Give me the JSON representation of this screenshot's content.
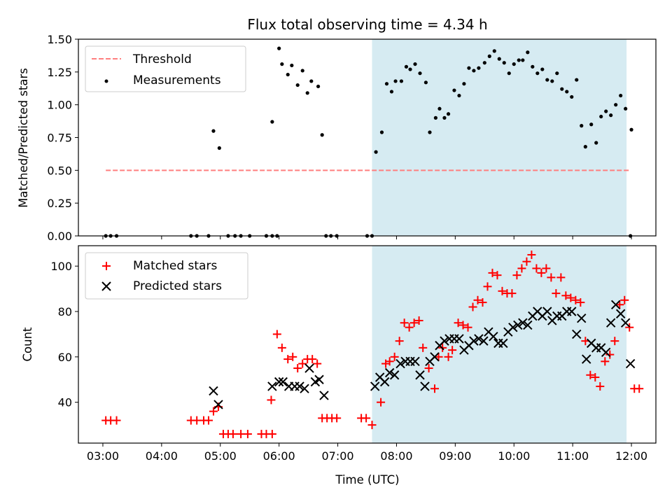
{
  "chart_data": [
    {
      "type": "scatter",
      "panel": "top",
      "title": "Flux total observing time = 4.34 h",
      "xlabel": "",
      "ylabel": "Matched/Predicted stars",
      "xlim": [
        "02:35",
        "12:25"
      ],
      "ylim": [
        0,
        1.5
      ],
      "yticks": [
        "0.00",
        "0.25",
        "0.50",
        "0.75",
        "1.00",
        "1.25",
        "1.50"
      ],
      "grid": false,
      "legend_position": "top-left",
      "shaded_interval": {
        "start": "07:35",
        "end": "11:55",
        "color": "#add8e6"
      },
      "threshold": {
        "name": "Threshold",
        "value": 0.5,
        "x_start": "03:03",
        "x_end": "11:58",
        "style": "dashed",
        "color": "#ff7f7f"
      },
      "series": [
        {
          "name": "Measurements",
          "color": "#000000",
          "marker": "dot",
          "points": [
            [
              "03:03",
              0
            ],
            [
              "03:08",
              0
            ],
            [
              "03:14",
              0
            ],
            [
              "04:30",
              0
            ],
            [
              "04:36",
              0
            ],
            [
              "04:48",
              0
            ],
            [
              "04:53",
              0.8
            ],
            [
              "04:59",
              0.67
            ],
            [
              "05:08",
              0
            ],
            [
              "05:15",
              0
            ],
            [
              "05:21",
              0
            ],
            [
              "05:30",
              0
            ],
            [
              "05:47",
              0
            ],
            [
              "05:53",
              0
            ],
            [
              "05:58",
              0
            ],
            [
              "05:53",
              0.87
            ],
            [
              "06:00",
              1.43
            ],
            [
              "06:03",
              1.31
            ],
            [
              "06:09",
              1.23
            ],
            [
              "06:13",
              1.3
            ],
            [
              "06:19",
              1.15
            ],
            [
              "06:24",
              1.26
            ],
            [
              "06:29",
              1.09
            ],
            [
              "06:33",
              1.18
            ],
            [
              "06:40",
              1.14
            ],
            [
              "06:44",
              0.77
            ],
            [
              "06:48",
              0
            ],
            [
              "06:53",
              0
            ],
            [
              "06:59",
              0
            ],
            [
              "07:30",
              0
            ],
            [
              "07:35",
              0
            ],
            [
              "07:39",
              0.64
            ],
            [
              "07:45",
              0.79
            ],
            [
              "07:50",
              1.16
            ],
            [
              "07:55",
              1.1
            ],
            [
              "07:59",
              1.18
            ],
            [
              "08:05",
              1.18
            ],
            [
              "08:10",
              1.29
            ],
            [
              "08:14",
              1.27
            ],
            [
              "08:19",
              1.31
            ],
            [
              "08:24",
              1.24
            ],
            [
              "08:30",
              1.17
            ],
            [
              "08:34",
              0.79
            ],
            [
              "08:40",
              0.9
            ],
            [
              "08:44",
              0.97
            ],
            [
              "08:49",
              0.9
            ],
            [
              "08:53",
              0.93
            ],
            [
              "08:59",
              1.11
            ],
            [
              "09:04",
              1.07
            ],
            [
              "09:09",
              1.16
            ],
            [
              "09:14",
              1.28
            ],
            [
              "09:19",
              1.26
            ],
            [
              "09:24",
              1.28
            ],
            [
              "09:30",
              1.32
            ],
            [
              "09:35",
              1.37
            ],
            [
              "09:40",
              1.41
            ],
            [
              "09:45",
              1.35
            ],
            [
              "09:50",
              1.32
            ],
            [
              "09:55",
              1.24
            ],
            [
              "10:00",
              1.31
            ],
            [
              "10:05",
              1.34
            ],
            [
              "10:09",
              1.34
            ],
            [
              "10:14",
              1.4
            ],
            [
              "10:19",
              1.29
            ],
            [
              "10:24",
              1.24
            ],
            [
              "10:29",
              1.27
            ],
            [
              "10:34",
              1.19
            ],
            [
              "10:39",
              1.18
            ],
            [
              "10:44",
              1.24
            ],
            [
              "10:49",
              1.12
            ],
            [
              "10:54",
              1.1
            ],
            [
              "10:59",
              1.06
            ],
            [
              "11:04",
              1.19
            ],
            [
              "11:09",
              0.84
            ],
            [
              "11:13",
              0.68
            ],
            [
              "11:19",
              0.85
            ],
            [
              "11:24",
              0.71
            ],
            [
              "11:29",
              0.91
            ],
            [
              "11:34",
              0.95
            ],
            [
              "11:39",
              0.92
            ],
            [
              "11:44",
              1.0
            ],
            [
              "11:49",
              1.07
            ],
            [
              "11:54",
              0.97
            ],
            [
              "12:00",
              0.81
            ],
            [
              "11:59",
              0
            ]
          ]
        }
      ]
    },
    {
      "type": "scatter",
      "panel": "bottom",
      "title": "",
      "xlabel": "Time (UTC)",
      "ylabel": "Count",
      "xlim": [
        "02:35",
        "12:25"
      ],
      "ylim": [
        22,
        109
      ],
      "xticks": [
        "03:00",
        "04:00",
        "05:00",
        "06:00",
        "07:00",
        "08:00",
        "09:00",
        "10:00",
        "11:00",
        "12:00"
      ],
      "yticks": [
        "40",
        "60",
        "80",
        "100"
      ],
      "grid": false,
      "legend_position": "top-left",
      "shaded_interval": {
        "start": "07:35",
        "end": "11:55",
        "color": "#add8e6"
      },
      "series": [
        {
          "name": "Matched stars",
          "color": "#ff0000",
          "marker": "plus",
          "points": [
            [
              "03:03",
              32
            ],
            [
              "03:08",
              32
            ],
            [
              "03:14",
              32
            ],
            [
              "04:30",
              32
            ],
            [
              "04:36",
              32
            ],
            [
              "04:43",
              32
            ],
            [
              "04:48",
              32
            ],
            [
              "04:53",
              36
            ],
            [
              "04:58",
              38
            ],
            [
              "05:03",
              26
            ],
            [
              "05:08",
              26
            ],
            [
              "05:13",
              26
            ],
            [
              "05:21",
              26
            ],
            [
              "05:28",
              26
            ],
            [
              "05:42",
              26
            ],
            [
              "05:47",
              26
            ],
            [
              "05:53",
              26
            ],
            [
              "05:52",
              41
            ],
            [
              "05:58",
              70
            ],
            [
              "06:03",
              64
            ],
            [
              "06:09",
              59
            ],
            [
              "06:14",
              60
            ],
            [
              "06:19",
              55
            ],
            [
              "06:24",
              57
            ],
            [
              "06:29",
              59
            ],
            [
              "06:34",
              59
            ],
            [
              "06:39",
              57
            ],
            [
              "06:44",
              33
            ],
            [
              "06:49",
              33
            ],
            [
              "06:54",
              33
            ],
            [
              "06:59",
              33
            ],
            [
              "07:24",
              33
            ],
            [
              "07:29",
              33
            ],
            [
              "07:35",
              30
            ],
            [
              "07:44",
              40
            ],
            [
              "07:49",
              57
            ],
            [
              "07:53",
              58
            ],
            [
              "07:58",
              60
            ],
            [
              "08:03",
              67
            ],
            [
              "08:08",
              75
            ],
            [
              "08:13",
              73
            ],
            [
              "08:18",
              75
            ],
            [
              "08:23",
              76
            ],
            [
              "08:27",
              64
            ],
            [
              "08:33",
              55
            ],
            [
              "08:39",
              46
            ],
            [
              "08:43",
              60
            ],
            [
              "08:47",
              64
            ],
            [
              "08:53",
              60
            ],
            [
              "08:57",
              63
            ],
            [
              "09:03",
              75
            ],
            [
              "09:08",
              74
            ],
            [
              "09:13",
              73
            ],
            [
              "09:18",
              82
            ],
            [
              "09:23",
              85
            ],
            [
              "09:28",
              84
            ],
            [
              "09:33",
              91
            ],
            [
              "09:38",
              97
            ],
            [
              "09:43",
              96
            ],
            [
              "09:48",
              89
            ],
            [
              "09:53",
              88
            ],
            [
              "09:58",
              88
            ],
            [
              "10:03",
              96
            ],
            [
              "10:08",
              99
            ],
            [
              "10:13",
              102
            ],
            [
              "10:18",
              105
            ],
            [
              "10:23",
              99
            ],
            [
              "10:28",
              97
            ],
            [
              "10:33",
              99
            ],
            [
              "10:38",
              95
            ],
            [
              "10:43",
              88
            ],
            [
              "10:48",
              95
            ],
            [
              "10:53",
              87
            ],
            [
              "10:58",
              86
            ],
            [
              "11:03",
              85
            ],
            [
              "11:08",
              84
            ],
            [
              "11:13",
              67
            ],
            [
              "11:18",
              52
            ],
            [
              "11:23",
              51
            ],
            [
              "11:28",
              47
            ],
            [
              "11:33",
              58
            ],
            [
              "11:38",
              61
            ],
            [
              "11:43",
              67
            ],
            [
              "11:48",
              83
            ],
            [
              "11:53",
              85
            ],
            [
              "11:58",
              73
            ],
            [
              "12:03",
              46
            ],
            [
              "12:08",
              46
            ]
          ]
        },
        {
          "name": "Predicted stars",
          "color": "#000000",
          "marker": "x",
          "points": [
            [
              "04:53",
              45
            ],
            [
              "04:58",
              39
            ],
            [
              "05:53",
              47
            ],
            [
              "06:00",
              49
            ],
            [
              "06:04",
              49
            ],
            [
              "06:10",
              47
            ],
            [
              "06:16",
              47
            ],
            [
              "06:21",
              47
            ],
            [
              "06:26",
              46
            ],
            [
              "06:31",
              55
            ],
            [
              "06:37",
              49
            ],
            [
              "06:41",
              50
            ],
            [
              "06:46",
              43
            ],
            [
              "07:38",
              47
            ],
            [
              "07:43",
              51
            ],
            [
              "07:48",
              49
            ],
            [
              "07:53",
              53
            ],
            [
              "07:58",
              52
            ],
            [
              "08:04",
              57
            ],
            [
              "08:09",
              58
            ],
            [
              "08:14",
              58
            ],
            [
              "08:19",
              58
            ],
            [
              "08:24",
              52
            ],
            [
              "08:29",
              47
            ],
            [
              "08:34",
              58
            ],
            [
              "08:39",
              60
            ],
            [
              "08:44",
              65
            ],
            [
              "08:49",
              67
            ],
            [
              "08:54",
              68
            ],
            [
              "08:59",
              68
            ],
            [
              "09:04",
              68
            ],
            [
              "09:09",
              63
            ],
            [
              "09:14",
              65
            ],
            [
              "09:19",
              67
            ],
            [
              "09:24",
              68
            ],
            [
              "09:29",
              67
            ],
            [
              "09:34",
              71
            ],
            [
              "09:39",
              69
            ],
            [
              "09:44",
              66
            ],
            [
              "09:49",
              66
            ],
            [
              "09:54",
              71
            ],
            [
              "09:59",
              73
            ],
            [
              "10:04",
              74
            ],
            [
              "10:09",
              75
            ],
            [
              "10:14",
              74
            ],
            [
              "10:19",
              78
            ],
            [
              "10:24",
              80
            ],
            [
              "10:29",
              78
            ],
            [
              "10:34",
              80
            ],
            [
              "10:39",
              76
            ],
            [
              "10:44",
              78
            ],
            [
              "10:49",
              78
            ],
            [
              "10:54",
              80
            ],
            [
              "10:59",
              80
            ],
            [
              "11:04",
              70
            ],
            [
              "11:09",
              77
            ],
            [
              "11:14",
              59
            ],
            [
              "11:19",
              66
            ],
            [
              "11:24",
              64
            ],
            [
              "11:29",
              64
            ],
            [
              "11:34",
              62
            ],
            [
              "11:39",
              75
            ],
            [
              "11:44",
              83
            ],
            [
              "11:49",
              79
            ],
            [
              "11:54",
              75
            ],
            [
              "11:59",
              57
            ]
          ]
        }
      ]
    }
  ]
}
